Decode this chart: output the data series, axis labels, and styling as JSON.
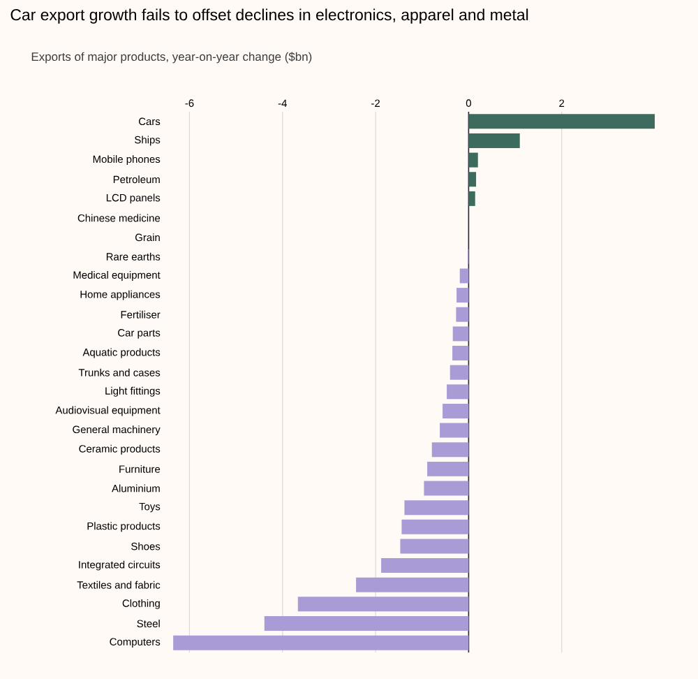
{
  "chart_data": {
    "type": "bar",
    "orientation": "horizontal",
    "title": "Car export growth fails to offset declines in electronics, apparel and metal",
    "subtitle": "Exports of major products, year-on-year change ($bn)",
    "categories": [
      "Cars",
      "Ships",
      "Mobile phones",
      "Petroleum",
      "LCD panels",
      "Chinese medicine",
      "Grain",
      "Rare earths",
      "Medical equipment",
      "Home appliances",
      "Fertiliser",
      "Car parts",
      "Aquatic products",
      "Trunks and cases",
      "Light fittings",
      "Audiovisual equipment",
      "General machinery",
      "Ceramic products",
      "Furniture",
      "Aluminium",
      "Toys",
      "Plastic products",
      "Shoes",
      "Integrated circuits",
      "Textiles and fabric",
      "Clothing",
      "Steel",
      "Computers"
    ],
    "values": [
      4.0,
      1.1,
      0.2,
      0.16,
      0.14,
      0.0,
      0.0,
      -0.02,
      -0.19,
      -0.26,
      -0.27,
      -0.34,
      -0.35,
      -0.4,
      -0.47,
      -0.56,
      -0.62,
      -0.79,
      -0.89,
      -0.96,
      -1.38,
      -1.44,
      -1.47,
      -1.88,
      -2.42,
      -3.67,
      -4.39,
      -6.35
    ],
    "colors": [
      "#3d6b5e",
      "#3d6b5e",
      "#3d6b5e",
      "#3d6b5e",
      "#3d6b5e",
      "#3d6b5e",
      "#3d6b5e",
      "#a99bd6",
      "#a99bd6",
      "#a99bd6",
      "#a99bd6",
      "#a99bd6",
      "#a99bd6",
      "#a99bd6",
      "#a99bd6",
      "#a99bd6",
      "#a99bd6",
      "#a99bd6",
      "#a99bd6",
      "#a99bd6",
      "#a99bd6",
      "#a99bd6",
      "#a99bd6",
      "#a99bd6",
      "#a99bd6",
      "#a99bd6",
      "#a99bd6",
      "#a99bd6"
    ],
    "xlim": [
      -6.4,
      4.0
    ],
    "xticks": [
      -6,
      -4,
      -2,
      0,
      2
    ],
    "grid": "x"
  }
}
